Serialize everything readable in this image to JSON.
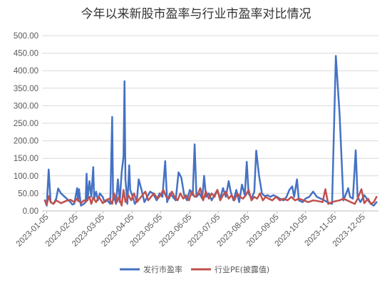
{
  "chart_data": {
    "type": "line",
    "title": "今年以来新股市盈率与行业市盈率对比情况",
    "xlabel": "",
    "ylabel": "",
    "ylim": [
      0,
      500
    ],
    "yticks": [
      "0.00",
      "50.00",
      "100.00",
      "150.00",
      "200.00",
      "250.00",
      "300.00",
      "350.00",
      "400.00",
      "450.00",
      "500.00"
    ],
    "xticks": [
      "2023-01-05",
      "2023-02-05",
      "2023-03-05",
      "2023-04-05",
      "2023-05-05",
      "2023-06-05",
      "2023-07-05",
      "2023-08-05",
      "2023-09-05",
      "2023-10-05",
      "2023-11-05",
      "2023-12-05"
    ],
    "xlim": [
      "2022-12-31",
      "2023-12-21"
    ],
    "grid": true,
    "legend": "bottom",
    "series": [
      {
        "name": "发行市盈率",
        "color": "#4472C4",
        "points": [
          [
            "2023-01-03",
            30
          ],
          [
            "2023-01-05",
            15
          ],
          [
            "2023-01-07",
            118
          ],
          [
            "2023-01-09",
            25
          ],
          [
            "2023-01-12",
            20
          ],
          [
            "2023-01-15",
            35
          ],
          [
            "2023-01-17",
            64
          ],
          [
            "2023-01-20",
            50
          ],
          [
            "2023-01-30",
            25
          ],
          [
            "2023-02-01",
            18
          ],
          [
            "2023-02-03",
            20
          ],
          [
            "2023-02-06",
            65
          ],
          [
            "2023-02-07",
            28
          ],
          [
            "2023-02-08",
            62
          ],
          [
            "2023-02-10",
            15
          ],
          [
            "2023-02-13",
            20
          ],
          [
            "2023-02-15",
            25
          ],
          [
            "2023-02-16",
            106
          ],
          [
            "2023-02-17",
            30
          ],
          [
            "2023-02-19",
            85
          ],
          [
            "2023-02-21",
            40
          ],
          [
            "2023-02-23",
            125
          ],
          [
            "2023-02-24",
            35
          ],
          [
            "2023-02-26",
            55
          ],
          [
            "2023-02-28",
            30
          ],
          [
            "2023-03-02",
            50
          ],
          [
            "2023-03-05",
            40
          ],
          [
            "2023-03-07",
            25
          ],
          [
            "2023-03-10",
            30
          ],
          [
            "2023-03-13",
            20
          ],
          [
            "2023-03-15",
            268
          ],
          [
            "2023-03-16",
            30
          ],
          [
            "2023-03-17",
            45
          ],
          [
            "2023-03-19",
            20
          ],
          [
            "2023-03-21",
            90
          ],
          [
            "2023-03-23",
            25
          ],
          [
            "2023-03-25",
            110
          ],
          [
            "2023-03-27",
            155
          ],
          [
            "2023-03-28",
            370
          ],
          [
            "2023-03-29",
            90
          ],
          [
            "2023-03-31",
            20
          ],
          [
            "2023-04-02",
            130
          ],
          [
            "2023-04-03",
            60
          ],
          [
            "2023-04-05",
            45
          ],
          [
            "2023-04-08",
            20
          ],
          [
            "2023-04-10",
            30
          ],
          [
            "2023-04-12",
            90
          ],
          [
            "2023-04-15",
            60
          ],
          [
            "2023-04-18",
            25
          ],
          [
            "2023-04-21",
            40
          ],
          [
            "2023-04-24",
            55
          ],
          [
            "2023-04-27",
            50
          ],
          [
            "2023-05-01",
            30
          ],
          [
            "2023-05-04",
            50
          ],
          [
            "2023-05-07",
            40
          ],
          [
            "2023-05-10",
            142
          ],
          [
            "2023-05-12",
            25
          ],
          [
            "2023-05-15",
            50
          ],
          [
            "2023-05-18",
            40
          ],
          [
            "2023-05-21",
            30
          ],
          [
            "2023-05-24",
            110
          ],
          [
            "2023-05-27",
            95
          ],
          [
            "2023-05-30",
            45
          ],
          [
            "2023-06-02",
            30
          ],
          [
            "2023-06-05",
            60
          ],
          [
            "2023-06-08",
            45
          ],
          [
            "2023-06-10",
            190
          ],
          [
            "2023-06-12",
            40
          ],
          [
            "2023-06-15",
            50
          ],
          [
            "2023-06-18",
            35
          ],
          [
            "2023-06-20",
            100
          ],
          [
            "2023-06-22",
            40
          ],
          [
            "2023-06-25",
            50
          ],
          [
            "2023-06-28",
            30
          ],
          [
            "2023-07-01",
            45
          ],
          [
            "2023-07-04",
            60
          ],
          [
            "2023-07-07",
            35
          ],
          [
            "2023-07-10",
            65
          ],
          [
            "2023-07-13",
            40
          ],
          [
            "2023-07-16",
            85
          ],
          [
            "2023-07-18",
            55
          ],
          [
            "2023-07-21",
            30
          ],
          [
            "2023-07-24",
            60
          ],
          [
            "2023-07-27",
            25
          ],
          [
            "2023-07-30",
            75
          ],
          [
            "2023-08-02",
            45
          ],
          [
            "2023-08-04",
            140
          ],
          [
            "2023-08-06",
            50
          ],
          [
            "2023-08-09",
            35
          ],
          [
            "2023-08-12",
            55
          ],
          [
            "2023-08-14",
            172
          ],
          [
            "2023-08-17",
            100
          ],
          [
            "2023-08-20",
            50
          ],
          [
            "2023-08-23",
            42
          ],
          [
            "2023-08-26",
            45
          ],
          [
            "2023-08-29",
            40
          ],
          [
            "2023-09-01",
            45
          ],
          [
            "2023-09-05",
            40
          ],
          [
            "2023-09-08",
            35
          ],
          [
            "2023-09-12",
            30
          ],
          [
            "2023-09-15",
            40
          ],
          [
            "2023-09-18",
            60
          ],
          [
            "2023-09-21",
            70
          ],
          [
            "2023-09-23",
            40
          ],
          [
            "2023-09-26",
            90
          ],
          [
            "2023-09-28",
            30
          ],
          [
            "2023-10-02",
            25
          ],
          [
            "2023-10-05",
            35
          ],
          [
            "2023-10-09",
            40
          ],
          [
            "2023-10-13",
            55
          ],
          [
            "2023-10-17",
            40
          ],
          [
            "2023-10-21",
            35
          ],
          [
            "2023-10-25",
            30
          ],
          [
            "2023-10-28",
            25
          ],
          [
            "2023-11-02",
            20
          ],
          [
            "2023-11-06",
            442
          ],
          [
            "2023-11-10",
            275
          ],
          [
            "2023-11-14",
            30
          ],
          [
            "2023-11-17",
            50
          ],
          [
            "2023-11-19",
            65
          ],
          [
            "2023-11-21",
            40
          ],
          [
            "2023-11-24",
            35
          ],
          [
            "2023-11-27",
            173
          ],
          [
            "2023-11-29",
            40
          ],
          [
            "2023-12-02",
            25
          ],
          [
            "2023-12-06",
            45
          ],
          [
            "2023-12-10",
            30
          ],
          [
            "2023-12-13",
            20
          ],
          [
            "2023-12-16",
            15
          ],
          [
            "2023-12-19",
            25
          ]
        ]
      },
      {
        "name": "行业PE(披露值)",
        "color": "#C0504D",
        "points": [
          [
            "2023-01-03",
            30
          ],
          [
            "2023-01-05",
            18
          ],
          [
            "2023-01-07",
            42
          ],
          [
            "2023-01-09",
            25
          ],
          [
            "2023-01-12",
            20
          ],
          [
            "2023-01-15",
            30
          ],
          [
            "2023-01-20",
            22
          ],
          [
            "2023-01-25",
            28
          ],
          [
            "2023-01-30",
            32
          ],
          [
            "2023-02-03",
            25
          ],
          [
            "2023-02-06",
            35
          ],
          [
            "2023-02-10",
            22
          ],
          [
            "2023-02-13",
            30
          ],
          [
            "2023-02-16",
            28
          ],
          [
            "2023-02-19",
            40
          ],
          [
            "2023-02-21",
            20
          ],
          [
            "2023-02-23",
            38
          ],
          [
            "2023-02-26",
            25
          ],
          [
            "2023-03-01",
            40
          ],
          [
            "2023-03-05",
            22
          ],
          [
            "2023-03-08",
            30
          ],
          [
            "2023-03-12",
            35
          ],
          [
            "2023-03-15",
            20
          ],
          [
            "2023-03-17",
            50
          ],
          [
            "2023-03-20",
            25
          ],
          [
            "2023-03-22",
            40
          ],
          [
            "2023-03-25",
            15
          ],
          [
            "2023-03-27",
            60
          ],
          [
            "2023-03-29",
            25
          ],
          [
            "2023-04-01",
            45
          ],
          [
            "2023-04-04",
            30
          ],
          [
            "2023-04-07",
            50
          ],
          [
            "2023-04-10",
            25
          ],
          [
            "2023-04-13",
            35
          ],
          [
            "2023-04-16",
            45
          ],
          [
            "2023-04-19",
            55
          ],
          [
            "2023-04-22",
            30
          ],
          [
            "2023-04-25",
            40
          ],
          [
            "2023-04-28",
            50
          ],
          [
            "2023-05-02",
            35
          ],
          [
            "2023-05-05",
            45
          ],
          [
            "2023-05-08",
            60
          ],
          [
            "2023-05-11",
            40
          ],
          [
            "2023-05-14",
            35
          ],
          [
            "2023-05-17",
            55
          ],
          [
            "2023-05-20",
            40
          ],
          [
            "2023-05-23",
            30
          ],
          [
            "2023-05-26",
            50
          ],
          [
            "2023-05-29",
            35
          ],
          [
            "2023-06-01",
            45
          ],
          [
            "2023-06-04",
            30
          ],
          [
            "2023-06-07",
            55
          ],
          [
            "2023-06-10",
            40
          ],
          [
            "2023-06-13",
            45
          ],
          [
            "2023-06-16",
            65
          ],
          [
            "2023-06-19",
            30
          ],
          [
            "2023-06-22",
            55
          ],
          [
            "2023-06-25",
            35
          ],
          [
            "2023-06-28",
            50
          ],
          [
            "2023-07-01",
            40
          ],
          [
            "2023-07-04",
            60
          ],
          [
            "2023-07-07",
            30
          ],
          [
            "2023-07-10",
            45
          ],
          [
            "2023-07-13",
            55
          ],
          [
            "2023-07-16",
            35
          ],
          [
            "2023-07-19",
            45
          ],
          [
            "2023-07-22",
            30
          ],
          [
            "2023-07-25",
            50
          ],
          [
            "2023-07-28",
            40
          ],
          [
            "2023-07-31",
            35
          ],
          [
            "2023-08-03",
            45
          ],
          [
            "2023-08-06",
            60
          ],
          [
            "2023-08-09",
            30
          ],
          [
            "2023-08-12",
            40
          ],
          [
            "2023-08-15",
            35
          ],
          [
            "2023-08-18",
            50
          ],
          [
            "2023-08-21",
            30
          ],
          [
            "2023-08-24",
            40
          ],
          [
            "2023-08-27",
            35
          ],
          [
            "2023-08-31",
            30
          ],
          [
            "2023-09-04",
            40
          ],
          [
            "2023-09-08",
            30
          ],
          [
            "2023-09-12",
            35
          ],
          [
            "2023-09-16",
            30
          ],
          [
            "2023-09-20",
            40
          ],
          [
            "2023-09-24",
            30
          ],
          [
            "2023-09-28",
            35
          ],
          [
            "2023-10-03",
            30
          ],
          [
            "2023-10-08",
            25
          ],
          [
            "2023-10-13",
            30
          ],
          [
            "2023-10-18",
            28
          ],
          [
            "2023-10-23",
            25
          ],
          [
            "2023-10-26",
            62
          ],
          [
            "2023-10-29",
            20
          ],
          [
            "2023-11-02",
            25
          ],
          [
            "2023-11-06",
            28
          ],
          [
            "2023-11-10",
            30
          ],
          [
            "2023-11-14",
            35
          ],
          [
            "2023-11-18",
            30
          ],
          [
            "2023-11-22",
            25
          ],
          [
            "2023-11-26",
            20
          ],
          [
            "2023-11-29",
            35
          ],
          [
            "2023-12-03",
            62
          ],
          [
            "2023-12-06",
            22
          ],
          [
            "2023-12-10",
            35
          ],
          [
            "2023-12-13",
            20
          ],
          [
            "2023-12-16",
            25
          ],
          [
            "2023-12-19",
            40
          ]
        ]
      }
    ]
  }
}
